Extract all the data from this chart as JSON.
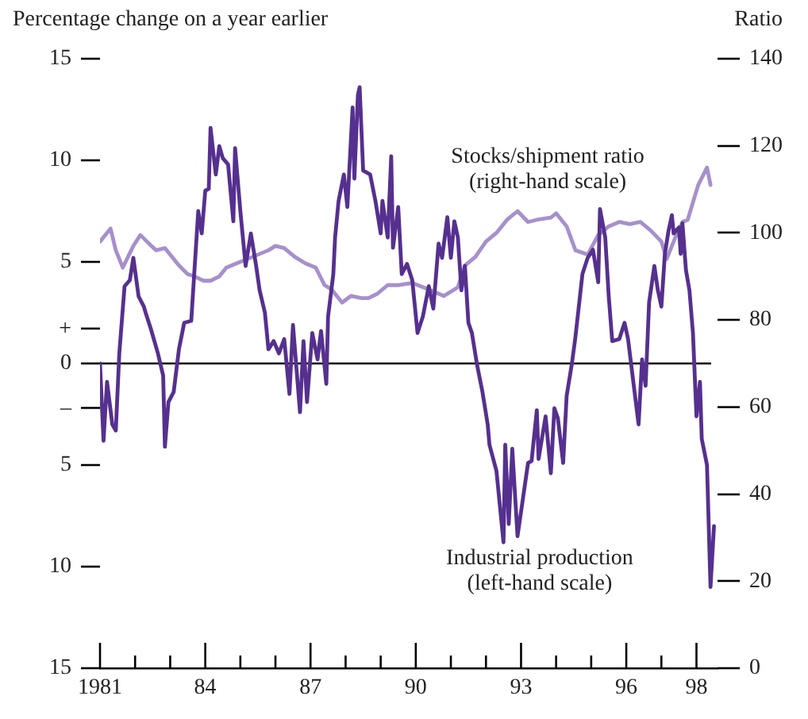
{
  "chart_data": {
    "type": "line",
    "ylabel": "Percentage change on a year earlier",
    "y2label": "Ratio",
    "xlim": [
      1981,
      1998.6
    ],
    "xticks": [
      {
        "value": 1981,
        "label": "1981"
      },
      {
        "value": 1982,
        "label": null
      },
      {
        "value": 1983,
        "label": null
      },
      {
        "value": 1984,
        "label": "84"
      },
      {
        "value": 1985,
        "label": null
      },
      {
        "value": 1986,
        "label": null
      },
      {
        "value": 1987,
        "label": "87"
      },
      {
        "value": 1988,
        "label": null
      },
      {
        "value": 1989,
        "label": null
      },
      {
        "value": 1990,
        "label": "90"
      },
      {
        "value": 1991,
        "label": null
      },
      {
        "value": 1992,
        "label": null
      },
      {
        "value": 1993,
        "label": "93"
      },
      {
        "value": 1994,
        "label": null
      },
      {
        "value": 1995,
        "label": null
      },
      {
        "value": 1996,
        "label": "96"
      },
      {
        "value": 1997,
        "label": null
      },
      {
        "value": 1998,
        "label": "98"
      }
    ],
    "ylim": [
      -15,
      15
    ],
    "yticks": [
      {
        "value": -15,
        "label": "15"
      },
      {
        "value": -10,
        "label": "10"
      },
      {
        "value": -5,
        "label": "5"
      },
      {
        "value": -2.2,
        "label": "–"
      },
      0,
      {
        "value": 1.7,
        "label": "+"
      },
      5,
      10,
      15
    ],
    "y2lim": [
      0,
      140
    ],
    "y2ticks": [
      0,
      20,
      40,
      60,
      80,
      100,
      120,
      140
    ],
    "grid": false,
    "legend": false,
    "line_style": "solid",
    "marker": "none",
    "ref_lines": [
      {
        "axis": "y",
        "value": 0,
        "color": "#000000"
      }
    ],
    "series": [
      {
        "name": "Industrial production (left-hand scale)",
        "color": "#56308f",
        "axis": "y",
        "x": [
          1981.0,
          1981.1,
          1981.2,
          1981.35,
          1981.45,
          1981.55,
          1981.7,
          1981.85,
          1981.95,
          1982.1,
          1982.25,
          1982.3,
          1982.45,
          1982.65,
          1982.8,
          1982.85,
          1982.95,
          1983.1,
          1983.25,
          1983.4,
          1983.6,
          1983.7,
          1983.8,
          1983.9,
          1984.0,
          1984.1,
          1984.15,
          1984.3,
          1984.4,
          1984.5,
          1984.65,
          1984.8,
          1984.85,
          1985.0,
          1985.15,
          1985.3,
          1985.45,
          1985.55,
          1985.7,
          1985.8,
          1985.95,
          1986.1,
          1986.25,
          1986.4,
          1986.5,
          1986.7,
          1986.8,
          1986.9,
          1987.05,
          1987.2,
          1987.3,
          1987.45,
          1987.5,
          1987.65,
          1987.7,
          1987.8,
          1987.95,
          1988.05,
          1988.2,
          1988.25,
          1988.35,
          1988.4,
          1988.5,
          1988.7,
          1988.85,
          1989.0,
          1989.05,
          1989.2,
          1989.3,
          1989.35,
          1989.5,
          1989.6,
          1989.75,
          1989.9,
          1990.05,
          1990.2,
          1990.37,
          1990.5,
          1990.65,
          1990.75,
          1990.9,
          1991.0,
          1991.1,
          1991.2,
          1991.3,
          1991.4,
          1991.5,
          1991.6,
          1991.75,
          1991.9,
          1992.05,
          1992.1,
          1992.3,
          1992.5,
          1992.55,
          1992.65,
          1992.75,
          1992.9,
          1993.2,
          1993.3,
          1993.45,
          1993.5,
          1993.7,
          1993.85,
          1993.95,
          1994.05,
          1994.2,
          1994.3,
          1994.45,
          1994.55,
          1994.75,
          1994.9,
          1995.05,
          1995.2,
          1995.25,
          1995.4,
          1995.5,
          1995.6,
          1995.8,
          1995.95,
          1996.05,
          1996.2,
          1996.35,
          1996.45,
          1996.55,
          1996.65,
          1996.8,
          1996.9,
          1997.0,
          1997.1,
          1997.2,
          1997.3,
          1997.35,
          1997.5,
          1997.55,
          1997.6,
          1997.7,
          1997.8,
          1997.9,
          1998.0,
          1998.1,
          1998.15,
          1998.3,
          1998.4,
          1998.5
        ],
        "values": [
          0.0,
          -3.8,
          -0.9,
          -3.0,
          -3.3,
          0.5,
          3.8,
          4.1,
          5.2,
          3.3,
          2.8,
          2.5,
          1.7,
          0.5,
          -0.6,
          -4.1,
          -1.9,
          -1.4,
          0.7,
          2.0,
          2.1,
          4.8,
          7.5,
          6.4,
          8.5,
          8.6,
          11.6,
          9.3,
          10.7,
          10.1,
          9.8,
          7.0,
          10.6,
          7.5,
          4.8,
          6.4,
          4.8,
          3.6,
          2.5,
          0.7,
          1.1,
          0.5,
          1.2,
          -1.5,
          1.9,
          -2.4,
          1.1,
          -1.9,
          1.5,
          0.2,
          1.6,
          -1.0,
          2.3,
          4.4,
          6.2,
          8.0,
          9.3,
          7.7,
          12.6,
          9.1,
          13.2,
          13.6,
          9.5,
          9.3,
          8.0,
          6.4,
          8.0,
          6.2,
          10.2,
          5.7,
          7.7,
          4.4,
          4.9,
          4.1,
          1.5,
          2.3,
          3.8,
          2.7,
          5.9,
          5.2,
          7.2,
          5.2,
          7.0,
          6.2,
          3.6,
          4.8,
          2.0,
          1.5,
          -0.1,
          -1.4,
          -3.0,
          -4.0,
          -5.3,
          -8.8,
          -4.0,
          -7.9,
          -4.2,
          -8.5,
          -4.9,
          -4.8,
          -2.3,
          -4.7,
          -2.6,
          -5.4,
          -2.2,
          -2.7,
          -4.9,
          -1.6,
          0.0,
          1.3,
          4.4,
          5.2,
          5.6,
          4.0,
          7.6,
          6.2,
          3.3,
          1.1,
          1.2,
          2.0,
          1.2,
          -0.9,
          -3.0,
          0.2,
          -1.1,
          3.0,
          4.8,
          3.6,
          2.8,
          5.4,
          6.5,
          7.3,
          6.4,
          6.7,
          5.4,
          6.9,
          4.6,
          3.6,
          1.5,
          -2.6,
          -0.9,
          -3.7,
          -5.0,
          -11.0,
          -8.0
        ]
      },
      {
        "name": "Stocks/shipment ratio (right-hand scale)",
        "color": "#a690cc",
        "axis": "y2",
        "x": [
          1981.0,
          1981.2,
          1981.3,
          1981.45,
          1981.65,
          1981.95,
          1982.15,
          1982.4,
          1982.6,
          1982.85,
          1983.05,
          1983.25,
          1983.5,
          1983.7,
          1983.95,
          1984.15,
          1984.4,
          1984.6,
          1984.9,
          1985.2,
          1985.5,
          1985.8,
          1986.0,
          1986.25,
          1986.55,
          1986.85,
          1987.15,
          1987.4,
          1987.6,
          1987.9,
          1988.15,
          1988.45,
          1988.65,
          1988.9,
          1989.2,
          1989.5,
          1989.9,
          1990.37,
          1990.8,
          1991.2,
          1991.4,
          1991.7,
          1992.0,
          1992.3,
          1992.6,
          1992.9,
          1993.2,
          1993.45,
          1993.85,
          1994.0,
          1994.3,
          1994.55,
          1994.9,
          1995.2,
          1995.5,
          1995.8,
          1996.1,
          1996.4,
          1996.7,
          1997.0,
          1997.15,
          1997.4,
          1997.6,
          1997.75,
          1997.9,
          1998.05,
          1998.3,
          1998.4
        ],
        "values": [
          98,
          100,
          101,
          96,
          92,
          97,
          99.5,
          97.5,
          96,
          96.5,
          94.5,
          92.5,
          90.5,
          90,
          89,
          89,
          90,
          92,
          93,
          94,
          95,
          96,
          97,
          96.5,
          94.5,
          93,
          92,
          88,
          87,
          84,
          85.5,
          85,
          85,
          86,
          88,
          88,
          88.5,
          87,
          85.5,
          87.5,
          92.5,
          94.5,
          98,
          100,
          103,
          105,
          102.5,
          103,
          103.5,
          104.5,
          101.5,
          96,
          95,
          99.5,
          101.5,
          102.5,
          102,
          102.5,
          100.5,
          98,
          94,
          99,
          102.5,
          103,
          107,
          111,
          115,
          111
        ]
      }
    ]
  }
}
